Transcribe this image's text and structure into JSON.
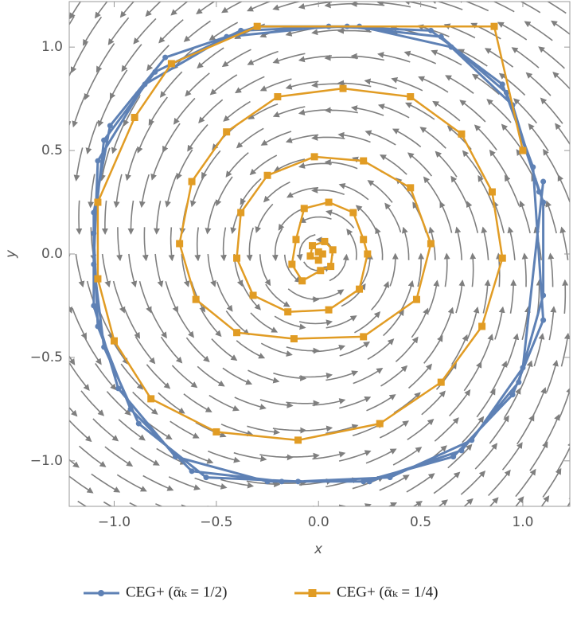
{
  "chart_data": {
    "type": "line",
    "xlabel": "x",
    "ylabel": "y",
    "xlim": [
      -1.22,
      1.23
    ],
    "ylim": [
      -1.22,
      1.22
    ],
    "xticks": [
      {
        "value": -1.0,
        "label": "−1.0"
      },
      {
        "value": -0.5,
        "label": "−0.5"
      },
      {
        "value": 0,
        "label": "0.0"
      },
      {
        "value": 0.5,
        "label": "0.5"
      },
      {
        "value": 1.0,
        "label": "1.0"
      }
    ],
    "yticks": [
      {
        "value": -1.0,
        "label": "−1.0"
      },
      {
        "value": -0.5,
        "label": "−0.5"
      },
      {
        "value": 0,
        "label": "0.0"
      },
      {
        "value": 0.5,
        "label": "0.5"
      },
      {
        "value": 1.0,
        "label": "1.0"
      }
    ],
    "series": [
      {
        "name": "CEG+ (ᾱₖ = 1/2)",
        "color": "#5e81b5",
        "x": [
          1.08,
          0.95,
          0.65,
          0.2,
          -0.3,
          -0.75,
          -1.02,
          -1.1,
          -1.1,
          -0.98,
          -0.7,
          -0.25,
          0.25,
          0.7,
          0.98,
          1.1,
          1.1,
          0.92,
          0.6,
          0.14,
          -0.38,
          -0.8,
          -1.05,
          -1.1,
          -1.08,
          -0.92,
          -0.62,
          -0.18,
          0.22,
          0.66,
          0.95,
          1.1,
          1.05,
          0.9,
          0.55,
          0.05,
          -0.45,
          -0.85,
          -1.08,
          -1.1,
          -1.05,
          -0.88,
          -0.55,
          -0.1,
          0.35,
          0.75,
          1.0,
          1.1
        ],
        "values": [
          0.3,
          0.72,
          1.0,
          1.1,
          1.1,
          0.95,
          0.62,
          0.2,
          -0.25,
          -0.65,
          -0.98,
          -1.1,
          -1.1,
          -0.95,
          -0.62,
          -0.2,
          0.25,
          0.78,
          1.05,
          1.1,
          1.08,
          0.88,
          0.55,
          0.1,
          -0.35,
          -0.75,
          -1.05,
          -1.1,
          -1.1,
          -0.98,
          -0.68,
          -0.32,
          0.42,
          0.82,
          1.08,
          1.1,
          1.05,
          0.82,
          0.45,
          -0.05,
          -0.45,
          -0.82,
          -1.08,
          -1.1,
          -1.08,
          -0.9,
          -0.55,
          0.35
        ]
      },
      {
        "name": "CEG+ (ᾱₖ = 1/4)",
        "color": "#e19c24",
        "x": [
          1.0,
          0.86,
          -0.3,
          -0.72,
          -0.9,
          -1.08,
          -1.08,
          -1.0,
          -0.82,
          -0.5,
          -0.1,
          0.3,
          0.6,
          0.8,
          0.9,
          0.85,
          0.7,
          0.45,
          0.12,
          -0.2,
          -0.45,
          -0.62,
          -0.68,
          -0.6,
          -0.4,
          -0.12,
          0.22,
          0.48,
          0.55,
          0.45,
          0.22,
          -0.02,
          -0.25,
          -0.38,
          -0.4,
          -0.32,
          -0.15,
          0.05,
          0.2,
          0.24,
          0.22,
          0.17,
          0.05,
          -0.07,
          -0.11,
          -0.13,
          -0.08,
          0.01,
          0.06,
          0.07,
          0.03,
          -0.03,
          -0.04,
          0.0,
          0.02,
          0.0
        ],
        "values": [
          0.5,
          1.1,
          1.1,
          0.92,
          0.66,
          0.25,
          -0.12,
          -0.42,
          -0.7,
          -0.86,
          -0.9,
          -0.82,
          -0.62,
          -0.35,
          -0.02,
          0.3,
          0.58,
          0.76,
          0.8,
          0.76,
          0.59,
          0.35,
          0.05,
          -0.22,
          -0.38,
          -0.41,
          -0.4,
          -0.22,
          0.05,
          0.32,
          0.45,
          0.47,
          0.38,
          0.2,
          -0.02,
          -0.2,
          -0.28,
          -0.27,
          -0.17,
          0.0,
          0.07,
          0.2,
          0.25,
          0.22,
          0.07,
          -0.05,
          -0.13,
          -0.08,
          -0.06,
          0.02,
          0.06,
          0.04,
          -0.01,
          -0.03,
          0.0,
          0.01
        ]
      }
    ]
  }
}
